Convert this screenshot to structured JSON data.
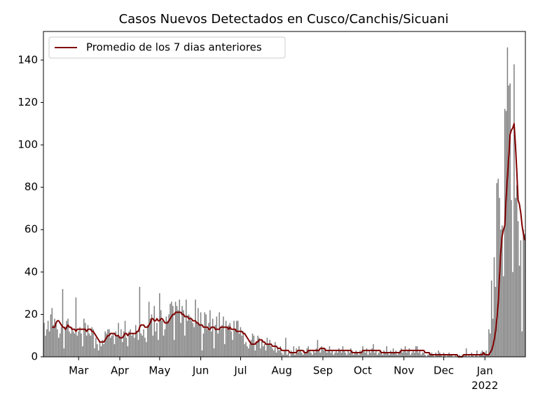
{
  "chart_data": {
    "type": "bar",
    "title": "Casos Nuevos Detectados en Cusco/Canchis/Sicuani",
    "x": [
      33,
      34,
      35,
      36,
      37,
      38,
      39,
      40,
      41,
      42,
      43,
      44,
      45,
      46,
      47,
      48,
      49,
      50,
      51,
      52,
      53,
      54,
      55,
      56,
      57,
      58,
      59,
      60,
      61,
      62,
      63,
      64,
      65,
      66,
      67,
      68,
      69,
      70,
      71,
      72,
      73,
      74,
      75,
      76,
      77,
      78,
      79,
      80,
      81,
      82,
      83,
      84,
      85,
      86,
      87,
      88,
      89,
      90,
      91,
      92,
      93,
      94,
      95,
      96,
      97,
      98,
      99,
      100,
      101,
      102,
      103,
      104,
      105,
      106,
      107,
      108,
      109,
      110,
      111,
      112,
      113,
      114,
      115,
      116,
      117,
      118,
      119,
      120,
      121,
      122,
      123,
      124,
      125,
      126,
      127,
      128,
      129,
      130,
      131,
      132,
      133,
      134,
      135,
      136,
      137,
      138,
      139,
      140,
      141,
      142,
      143,
      144,
      145,
      146,
      147,
      148,
      149,
      150,
      151,
      152,
      153,
      154,
      155,
      156,
      157,
      158,
      159,
      160,
      161,
      162,
      163,
      164,
      165,
      166,
      167,
      168,
      169,
      170,
      171,
      172,
      173,
      174,
      175,
      176,
      177,
      178,
      179,
      180,
      181,
      182,
      183,
      184,
      185,
      186,
      187,
      188,
      189,
      190,
      191,
      192,
      193,
      194,
      195,
      196,
      197,
      198,
      199,
      200,
      201,
      202,
      203,
      204,
      205,
      206,
      207,
      208,
      209,
      210,
      211,
      212,
      213,
      214,
      215,
      216,
      217,
      218,
      219,
      220,
      221,
      222,
      223,
      224,
      225,
      226,
      227,
      228,
      229,
      230,
      231,
      232,
      233,
      234,
      235,
      236,
      237,
      238,
      239,
      240,
      241,
      242,
      243,
      244,
      245,
      246,
      247,
      248,
      249,
      250,
      251,
      252,
      253,
      254,
      255,
      256,
      257,
      258,
      259,
      260,
      261,
      262,
      263,
      264,
      265,
      266,
      267,
      268,
      269,
      270,
      271,
      272,
      273,
      274,
      275,
      276,
      277,
      278,
      279,
      280,
      281,
      282,
      283,
      284,
      285,
      286,
      287,
      288,
      289,
      290,
      291,
      292,
      293,
      294,
      295,
      296,
      297,
      298,
      299,
      300,
      301,
      302,
      303,
      304,
      305,
      306,
      307,
      308,
      309,
      310,
      311,
      312,
      313,
      314,
      315,
      316,
      317,
      318,
      319,
      320,
      321,
      322,
      323,
      324,
      325,
      326,
      327,
      328,
      329,
      330,
      331,
      332,
      333,
      334,
      335,
      336,
      337,
      338,
      339,
      340,
      341,
      342,
      343,
      344,
      345,
      346,
      347,
      348,
      349,
      350,
      351,
      352,
      353,
      354,
      355,
      356,
      357,
      358,
      359,
      360,
      361,
      362,
      363,
      364,
      365,
      366,
      367,
      368,
      369,
      370,
      371,
      372,
      373,
      374,
      375,
      376,
      377,
      378,
      379,
      380,
      381,
      382,
      383,
      384,
      385,
      386,
      387,
      388,
      389,
      390,
      391,
      392,
      393,
      394,
      395
    ],
    "series": [
      {
        "type": "bar",
        "color": "#808080",
        "values": [
          16,
          10,
          13,
          17,
          12,
          20,
          23,
          15,
          18,
          16,
          13,
          9,
          11,
          14,
          32,
          4,
          14,
          17,
          18,
          12,
          11,
          14,
          12,
          11,
          28,
          10,
          12,
          14,
          11,
          5,
          18,
          16,
          10,
          15,
          11,
          10,
          14,
          13,
          4,
          9,
          6,
          3,
          7,
          5,
          8,
          6,
          12,
          11,
          13,
          13,
          9,
          10,
          11,
          6,
          12,
          10,
          16,
          9,
          13,
          7,
          12,
          17,
          9,
          5,
          12,
          13,
          10,
          11,
          9,
          15,
          12,
          8,
          33,
          11,
          10,
          13,
          9,
          7,
          15,
          26,
          18,
          20,
          10,
          24,
          12,
          16,
          8,
          30,
          22,
          17,
          10,
          13,
          19,
          17,
          20,
          25,
          26,
          24,
          8,
          26,
          24,
          22,
          27,
          16,
          24,
          22,
          10,
          27,
          17,
          20,
          19,
          17,
          16,
          14,
          27,
          16,
          23,
          15,
          21,
          3,
          11,
          21,
          20,
          13,
          16,
          22,
          12,
          18,
          4,
          15,
          19,
          11,
          21,
          13,
          15,
          19,
          6,
          17,
          14,
          15,
          16,
          12,
          8,
          17,
          13,
          17,
          17,
          11,
          14,
          10,
          12,
          6,
          7,
          5,
          4,
          6,
          8,
          11,
          10,
          3,
          7,
          10,
          9,
          4,
          8,
          5,
          6,
          3,
          9,
          6,
          8,
          5,
          4,
          3,
          7,
          2,
          4,
          3,
          5,
          2,
          1,
          3,
          9,
          1,
          2,
          0,
          3,
          2,
          5,
          1,
          4,
          2,
          5,
          3,
          2,
          1,
          3,
          2,
          4,
          5,
          3,
          2,
          1,
          3,
          2,
          4,
          8,
          3,
          2,
          5,
          4,
          3,
          4,
          2,
          3,
          5,
          2,
          3,
          1,
          2,
          3,
          2,
          4,
          3,
          2,
          5,
          3,
          2,
          1,
          3,
          2,
          4,
          3,
          1,
          2,
          3,
          2,
          1,
          3,
          2,
          5,
          3,
          2,
          4,
          1,
          3,
          2,
          4,
          6,
          2,
          3,
          1,
          2,
          3,
          2,
          1,
          3,
          2,
          5,
          2,
          1,
          3,
          2,
          4,
          2,
          3,
          1,
          2,
          3,
          4,
          2,
          3,
          5,
          2,
          3,
          4,
          1,
          2,
          3,
          2,
          5,
          5,
          2,
          3,
          1,
          2,
          2,
          1,
          0,
          1,
          2,
          1,
          2,
          1,
          0,
          2,
          1,
          3,
          2,
          1,
          0,
          2,
          1,
          0,
          1,
          2,
          1,
          1,
          0,
          0,
          1,
          0,
          0,
          1,
          0,
          1,
          0,
          1,
          4,
          0,
          1,
          0,
          2,
          1,
          0,
          1,
          3,
          0,
          1,
          2,
          3,
          2,
          2,
          3,
          1,
          13,
          11,
          36,
          18,
          47,
          33,
          82,
          84,
          75,
          60,
          62,
          38,
          117,
          116,
          146,
          128,
          129,
          74,
          40,
          138,
          75,
          81,
          64,
          43,
          55,
          12,
          60,
          58
        ]
      },
      {
        "type": "line",
        "name": "Promedio de los 7 dias anteriores",
        "color": "#800000",
        "values": [
          null,
          null,
          null,
          null,
          null,
          null,
          14,
          14,
          14,
          16,
          17,
          17,
          16,
          15,
          14,
          14,
          13,
          14,
          15,
          14,
          14,
          13,
          13,
          13,
          12,
          13,
          13,
          13,
          13,
          13,
          13,
          13,
          12,
          13,
          13,
          13,
          12,
          12,
          11,
          10,
          9,
          8,
          7,
          7,
          7,
          7,
          8,
          9,
          10,
          10,
          11,
          11,
          11,
          11,
          10,
          10,
          10,
          9,
          9,
          9,
          10,
          11,
          11,
          10,
          11,
          11,
          11,
          11,
          11,
          11,
          12,
          12,
          14,
          15,
          15,
          15,
          14,
          14,
          14,
          15,
          16,
          18,
          18,
          17,
          17,
          18,
          17,
          17,
          18,
          18,
          17,
          16,
          16,
          16,
          17,
          18,
          19,
          20,
          20,
          21,
          21,
          21,
          21,
          21,
          20,
          20,
          19,
          19,
          19,
          18,
          18,
          18,
          17,
          17,
          17,
          16,
          16,
          15,
          15,
          15,
          14,
          14,
          14,
          14,
          13,
          13,
          14,
          14,
          14,
          13,
          13,
          13,
          13,
          14,
          14,
          14,
          14,
          14,
          14,
          13,
          14,
          13,
          13,
          13,
          13,
          12,
          12,
          12,
          12,
          12,
          11,
          11,
          10,
          9,
          8,
          7,
          6,
          6,
          6,
          6,
          7,
          7,
          8,
          8,
          8,
          7,
          7,
          6,
          6,
          6,
          6,
          6,
          5,
          5,
          5,
          5,
          4,
          4,
          4,
          3,
          3,
          3,
          3,
          3,
          3,
          2,
          2,
          2,
          2,
          2,
          2,
          3,
          3,
          3,
          3,
          3,
          2,
          2,
          2,
          3,
          3,
          3,
          3,
          3,
          3,
          3,
          3,
          3,
          4,
          4,
          4,
          4,
          3,
          3,
          3,
          3,
          3,
          3,
          3,
          3,
          3,
          3,
          3,
          3,
          3,
          3,
          3,
          3,
          3,
          3,
          3,
          3,
          2,
          2,
          2,
          2,
          2,
          2,
          2,
          2,
          3,
          3,
          3,
          3,
          3,
          3,
          3,
          3,
          3,
          3,
          3,
          3,
          3,
          3,
          2,
          2,
          2,
          2,
          2,
          2,
          2,
          2,
          2,
          2,
          2,
          2,
          2,
          2,
          2,
          3,
          3,
          3,
          3,
          3,
          3,
          3,
          3,
          3,
          3,
          3,
          3,
          3,
          3,
          3,
          3,
          3,
          3,
          2,
          2,
          2,
          2,
          1,
          1,
          1,
          1,
          1,
          1,
          1,
          1,
          1,
          1,
          1,
          1,
          1,
          1,
          1,
          1,
          1,
          1,
          1,
          1,
          1,
          0,
          0,
          0,
          0,
          1,
          1,
          1,
          1,
          1,
          1,
          1,
          1,
          1,
          1,
          1,
          1,
          1,
          1,
          1,
          2,
          1,
          1,
          1,
          1,
          2,
          3,
          5,
          8,
          12,
          18,
          25,
          38,
          50,
          57,
          60,
          62,
          75,
          85,
          95,
          105,
          107,
          108,
          110,
          100,
          88,
          74,
          72,
          68,
          62,
          58,
          55
        ]
      }
    ],
    "xlim": [
      32.5,
      395.5
    ],
    "xticks": [
      {
        "value": 59,
        "label": "Mar"
      },
      {
        "value": 90,
        "label": "Apr"
      },
      {
        "value": 120,
        "label": "May"
      },
      {
        "value": 151,
        "label": "Jun"
      },
      {
        "value": 181,
        "label": "Jul"
      },
      {
        "value": 212,
        "label": "Aug"
      },
      {
        "value": 243,
        "label": "Sep"
      },
      {
        "value": 273,
        "label": "Oct"
      },
      {
        "value": 304,
        "label": "Nov"
      },
      {
        "value": 334,
        "label": "Dec"
      },
      {
        "value": 365,
        "label": "Jan\n2022"
      }
    ],
    "ylim": [
      0,
      153.5
    ],
    "yticks": [
      0,
      20,
      40,
      60,
      80,
      100,
      120,
      140
    ],
    "legend": "upper left"
  }
}
